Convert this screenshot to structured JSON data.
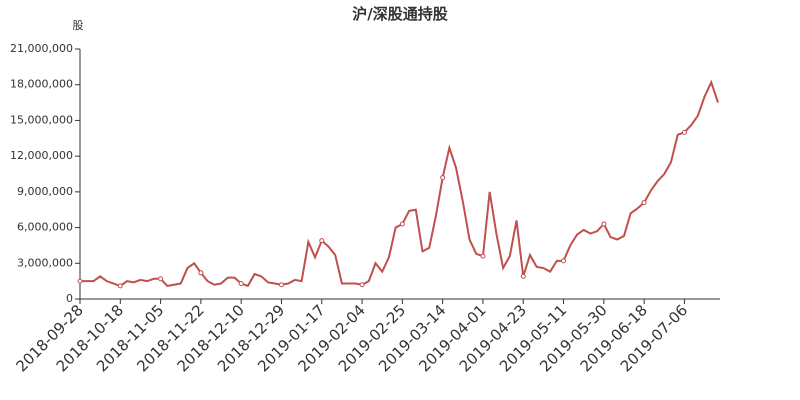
{
  "chart_data": {
    "type": "line",
    "title": "沪/深股通持股",
    "y_label": "股",
    "categories": [
      "2018-09-28",
      null,
      null,
      null,
      null,
      null,
      "2018-10-18",
      null,
      null,
      null,
      null,
      null,
      "2018-11-05",
      null,
      null,
      null,
      null,
      null,
      "2018-11-22",
      null,
      null,
      null,
      null,
      null,
      "2018-12-10",
      null,
      null,
      null,
      null,
      null,
      "2018-12-29",
      null,
      null,
      null,
      null,
      null,
      "2019-01-17",
      null,
      null,
      null,
      null,
      null,
      "2019-02-04",
      null,
      null,
      null,
      null,
      null,
      "2019-02-25",
      null,
      null,
      null,
      null,
      null,
      "2019-03-14",
      null,
      null,
      null,
      null,
      null,
      "2019-04-01",
      null,
      null,
      null,
      null,
      null,
      "2019-04-23",
      null,
      null,
      null,
      null,
      null,
      "2019-05-11",
      null,
      null,
      null,
      null,
      null,
      "2019-05-30",
      null,
      null,
      null,
      null,
      null,
      "2019-06-18",
      null,
      null,
      null,
      null,
      null,
      "2019-07-06",
      null,
      null,
      null,
      null,
      null
    ],
    "series": [
      {
        "color": "#c0504d",
        "values": [
          1500000,
          1500000,
          1500000,
          1900000,
          1500000,
          1300000,
          1100000,
          1500000,
          1400000,
          1600000,
          1500000,
          1700000,
          1700000,
          1100000,
          1200000,
          1300000,
          2600000,
          3000000,
          2200000,
          1500000,
          1200000,
          1300000,
          1800000,
          1800000,
          1300000,
          1100000,
          2100000,
          1900000,
          1400000,
          1300000,
          1200000,
          1300000,
          1600000,
          1500000,
          4800000,
          3500000,
          4900000,
          4400000,
          3700000,
          1300000,
          1300000,
          1300000,
          1200000,
          1500000,
          3000000,
          2300000,
          3500000,
          6000000,
          6300000,
          7400000,
          7500000,
          4000000,
          4300000,
          7000000,
          10200000,
          12700000,
          11000000,
          8200000,
          5000000,
          3800000,
          3600000,
          9000000,
          5500000,
          2600000,
          3600000,
          6600000,
          1900000,
          3700000,
          2700000,
          2600000,
          2300000,
          3200000,
          3200000,
          4500000,
          5400000,
          5800000,
          5500000,
          5700000,
          6300000,
          5200000,
          5000000,
          5300000,
          7200000,
          7600000,
          8100000,
          9100000,
          9900000,
          10500000,
          11500000,
          13800000,
          14000000,
          14600000,
          15400000,
          17000000,
          18200000,
          16500000
        ]
      }
    ],
    "ylim": [
      0,
      21000000
    ],
    "yticks": [
      {
        "value": 0,
        "label": "0"
      },
      {
        "value": 3000000,
        "label": "3,000,000"
      },
      {
        "value": 6000000,
        "label": "6,000,000"
      },
      {
        "value": 9000000,
        "label": "9,000,000"
      },
      {
        "value": 12000000,
        "label": "12,000,000"
      },
      {
        "value": 15000000,
        "label": "15,000,000"
      },
      {
        "value": 18000000,
        "label": "18,000,000"
      },
      {
        "value": 21000000,
        "label": "21,000,000"
      }
    ]
  }
}
